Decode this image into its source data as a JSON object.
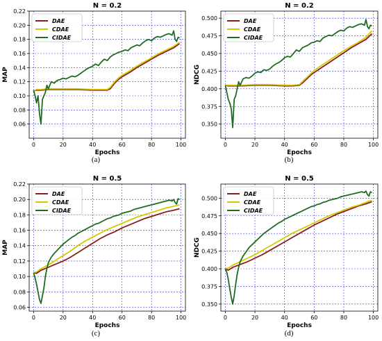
{
  "chart_data": [
    {
      "type": "line",
      "title": "N = 0.2",
      "xlabel": "Epochs",
      "ylabel": "MAP",
      "caption": "(a)",
      "xlim": [
        -3,
        103
      ],
      "ylim": [
        0.04,
        0.22
      ],
      "xticks": [
        "0",
        "20",
        "40",
        "60",
        "80",
        "100"
      ],
      "yticks": [
        "0.06",
        "0.08",
        "0.10",
        "0.12",
        "0.14",
        "0.16",
        "0.18",
        "0.20",
        "0.22"
      ],
      "grid": true,
      "legend_position": "top-left",
      "series": [
        {
          "name": "DAE",
          "color": "#8b1a1a",
          "x": [
            0,
            2,
            5,
            10,
            20,
            30,
            40,
            45,
            50,
            52,
            55,
            58,
            60,
            65,
            70,
            75,
            80,
            85,
            90,
            95,
            99
          ],
          "y": [
            0.107,
            0.108,
            0.108,
            0.109,
            0.109,
            0.109,
            0.108,
            0.108,
            0.108,
            0.11,
            0.118,
            0.124,
            0.127,
            0.133,
            0.14,
            0.146,
            0.152,
            0.158,
            0.163,
            0.168,
            0.174
          ]
        },
        {
          "name": "CDAE",
          "color": "#d4c800",
          "x": [
            0,
            2,
            5,
            10,
            20,
            30,
            40,
            45,
            50,
            52,
            55,
            58,
            60,
            65,
            70,
            75,
            80,
            85,
            90,
            95,
            99
          ],
          "y": [
            0.107,
            0.109,
            0.109,
            0.11,
            0.11,
            0.11,
            0.109,
            0.109,
            0.109,
            0.112,
            0.12,
            0.126,
            0.129,
            0.135,
            0.142,
            0.148,
            0.154,
            0.16,
            0.165,
            0.17,
            0.176
          ]
        },
        {
          "name": "CIDAE",
          "color": "#1f6b1f",
          "x": [
            0,
            1,
            2,
            3,
            4,
            5,
            6,
            7,
            8,
            9,
            10,
            12,
            14,
            16,
            18,
            20,
            22,
            24,
            26,
            28,
            30,
            32,
            34,
            36,
            38,
            40,
            42,
            44,
            46,
            48,
            50,
            52,
            54,
            56,
            58,
            60,
            62,
            64,
            66,
            68,
            70,
            72,
            74,
            76,
            78,
            80,
            82,
            84,
            86,
            88,
            90,
            92,
            94,
            95,
            96,
            97,
            98,
            99
          ],
          "y": [
            0.108,
            0.1,
            0.09,
            0.1,
            0.075,
            0.06,
            0.095,
            0.1,
            0.105,
            0.115,
            0.11,
            0.12,
            0.118,
            0.122,
            0.123,
            0.125,
            0.124,
            0.126,
            0.128,
            0.127,
            0.129,
            0.132,
            0.135,
            0.138,
            0.14,
            0.142,
            0.145,
            0.143,
            0.148,
            0.152,
            0.15,
            0.155,
            0.158,
            0.16,
            0.162,
            0.163,
            0.165,
            0.164,
            0.168,
            0.17,
            0.172,
            0.171,
            0.175,
            0.178,
            0.18,
            0.178,
            0.182,
            0.184,
            0.183,
            0.185,
            0.187,
            0.188,
            0.186,
            0.192,
            0.18,
            0.177,
            0.183,
            0.182
          ]
        }
      ]
    },
    {
      "type": "line",
      "title": "N = 0.2",
      "xlabel": "Epochs",
      "ylabel": "NDCG",
      "caption": "(b)",
      "xlim": [
        -3,
        103
      ],
      "ylim": [
        0.33,
        0.51
      ],
      "xticks": [
        "0",
        "20",
        "40",
        "60",
        "80",
        "100"
      ],
      "yticks": [
        "0.350",
        "0.375",
        "0.400",
        "0.425",
        "0.450",
        "0.475",
        "0.500"
      ],
      "grid": true,
      "legend_position": "top-left",
      "series": [
        {
          "name": "DAE",
          "color": "#8b1a1a",
          "x": [
            0,
            2,
            5,
            10,
            20,
            30,
            40,
            45,
            50,
            52,
            55,
            58,
            60,
            65,
            70,
            75,
            80,
            85,
            90,
            95,
            99
          ],
          "y": [
            0.405,
            0.404,
            0.404,
            0.404,
            0.405,
            0.405,
            0.404,
            0.404,
            0.405,
            0.408,
            0.414,
            0.42,
            0.423,
            0.43,
            0.437,
            0.444,
            0.451,
            0.458,
            0.464,
            0.47,
            0.478
          ]
        },
        {
          "name": "CDAE",
          "color": "#d4c800",
          "x": [
            0,
            2,
            5,
            10,
            20,
            30,
            40,
            45,
            50,
            52,
            55,
            58,
            60,
            65,
            70,
            75,
            80,
            85,
            90,
            95,
            99
          ],
          "y": [
            0.405,
            0.405,
            0.405,
            0.405,
            0.406,
            0.406,
            0.405,
            0.405,
            0.406,
            0.41,
            0.416,
            0.422,
            0.426,
            0.433,
            0.44,
            0.447,
            0.454,
            0.46,
            0.466,
            0.473,
            0.482
          ]
        },
        {
          "name": "CIDAE",
          "color": "#1f6b1f",
          "x": [
            0,
            1,
            2,
            3,
            4,
            5,
            6,
            7,
            8,
            9,
            10,
            12,
            14,
            16,
            18,
            20,
            22,
            24,
            26,
            28,
            30,
            32,
            34,
            36,
            38,
            40,
            42,
            44,
            46,
            48,
            50,
            52,
            54,
            56,
            58,
            60,
            62,
            64,
            66,
            68,
            70,
            72,
            74,
            76,
            78,
            80,
            82,
            84,
            86,
            88,
            90,
            92,
            94,
            95,
            96,
            97,
            98,
            99
          ],
          "y": [
            0.405,
            0.395,
            0.385,
            0.38,
            0.372,
            0.345,
            0.385,
            0.39,
            0.4,
            0.41,
            0.405,
            0.414,
            0.416,
            0.415,
            0.418,
            0.422,
            0.424,
            0.423,
            0.427,
            0.426,
            0.428,
            0.432,
            0.435,
            0.437,
            0.44,
            0.444,
            0.446,
            0.445,
            0.45,
            0.455,
            0.453,
            0.458,
            0.46,
            0.462,
            0.465,
            0.466,
            0.468,
            0.467,
            0.472,
            0.474,
            0.476,
            0.475,
            0.478,
            0.481,
            0.483,
            0.482,
            0.486,
            0.488,
            0.487,
            0.489,
            0.491,
            0.492,
            0.49,
            0.498,
            0.488,
            0.485,
            0.49,
            0.489
          ]
        }
      ]
    },
    {
      "type": "line",
      "title": "N = 0.5",
      "xlabel": "Epochs",
      "ylabel": "MAP",
      "caption": "(c)",
      "xlim": [
        -3,
        103
      ],
      "ylim": [
        0.055,
        0.22
      ],
      "xticks": [
        "0",
        "20",
        "40",
        "60",
        "80",
        "100"
      ],
      "yticks": [
        "0.06",
        "0.08",
        "0.10",
        "0.12",
        "0.14",
        "0.16",
        "0.18",
        "0.20",
        "0.22"
      ],
      "grid": true,
      "legend_position": "top-left",
      "series": [
        {
          "name": "DAE",
          "color": "#8b1a1a",
          "x": [
            0,
            2,
            5,
            10,
            15,
            20,
            25,
            30,
            35,
            40,
            45,
            50,
            55,
            60,
            65,
            70,
            75,
            80,
            85,
            90,
            95,
            99
          ],
          "y": [
            0.105,
            0.104,
            0.108,
            0.112,
            0.116,
            0.12,
            0.125,
            0.131,
            0.137,
            0.143,
            0.149,
            0.154,
            0.158,
            0.163,
            0.167,
            0.171,
            0.175,
            0.178,
            0.181,
            0.184,
            0.186,
            0.188
          ]
        },
        {
          "name": "CDAE",
          "color": "#d4c800",
          "x": [
            0,
            2,
            5,
            10,
            15,
            20,
            25,
            30,
            35,
            40,
            45,
            50,
            55,
            60,
            65,
            70,
            75,
            80,
            85,
            90,
            95,
            99
          ],
          "y": [
            0.105,
            0.106,
            0.11,
            0.115,
            0.121,
            0.127,
            0.133,
            0.14,
            0.146,
            0.151,
            0.156,
            0.161,
            0.165,
            0.169,
            0.173,
            0.177,
            0.18,
            0.183,
            0.186,
            0.189,
            0.191,
            0.193
          ]
        },
        {
          "name": "CIDAE",
          "color": "#1f6b1f",
          "x": [
            0,
            1,
            2,
            3,
            4,
            5,
            6,
            7,
            8,
            9,
            10,
            12,
            14,
            16,
            18,
            20,
            22,
            24,
            26,
            28,
            30,
            32,
            34,
            36,
            38,
            40,
            42,
            44,
            46,
            48,
            50,
            52,
            54,
            56,
            58,
            60,
            62,
            64,
            66,
            68,
            70,
            72,
            74,
            76,
            78,
            80,
            82,
            84,
            86,
            88,
            90,
            92,
            94,
            95,
            96,
            97,
            98,
            99
          ],
          "y": [
            0.105,
            0.098,
            0.09,
            0.08,
            0.07,
            0.065,
            0.075,
            0.085,
            0.1,
            0.11,
            0.118,
            0.125,
            0.13,
            0.134,
            0.138,
            0.142,
            0.145,
            0.148,
            0.151,
            0.153,
            0.156,
            0.158,
            0.16,
            0.162,
            0.164,
            0.166,
            0.168,
            0.169,
            0.171,
            0.173,
            0.175,
            0.176,
            0.178,
            0.179,
            0.18,
            0.182,
            0.183,
            0.184,
            0.185,
            0.187,
            0.188,
            0.189,
            0.19,
            0.191,
            0.192,
            0.193,
            0.194,
            0.195,
            0.196,
            0.197,
            0.198,
            0.199,
            0.198,
            0.2,
            0.196,
            0.194,
            0.201,
            0.2
          ]
        }
      ]
    },
    {
      "type": "line",
      "title": "N = 0.5",
      "xlabel": "Epochs",
      "ylabel": "NDCG",
      "caption": "(d)",
      "xlim": [
        -3,
        103
      ],
      "ylim": [
        0.34,
        0.52
      ],
      "xticks": [
        "0",
        "20",
        "40",
        "60",
        "80",
        "100"
      ],
      "yticks": [
        "0.350",
        "0.375",
        "0.400",
        "0.425",
        "0.450",
        "0.475",
        "0.500"
      ],
      "grid": true,
      "legend_position": "top-left",
      "series": [
        {
          "name": "DAE",
          "color": "#8b1a1a",
          "x": [
            0,
            2,
            5,
            10,
            15,
            20,
            25,
            30,
            35,
            40,
            45,
            50,
            55,
            60,
            65,
            70,
            75,
            80,
            85,
            90,
            95,
            99
          ],
          "y": [
            0.4,
            0.398,
            0.402,
            0.406,
            0.41,
            0.415,
            0.42,
            0.426,
            0.432,
            0.438,
            0.444,
            0.45,
            0.456,
            0.462,
            0.467,
            0.472,
            0.477,
            0.481,
            0.485,
            0.489,
            0.492,
            0.495
          ]
        },
        {
          "name": "CDAE",
          "color": "#d4c800",
          "x": [
            0,
            2,
            5,
            10,
            15,
            20,
            25,
            30,
            35,
            40,
            45,
            50,
            55,
            60,
            65,
            70,
            75,
            80,
            85,
            90,
            95,
            99
          ],
          "y": [
            0.4,
            0.401,
            0.405,
            0.41,
            0.415,
            0.42,
            0.426,
            0.432,
            0.438,
            0.444,
            0.45,
            0.455,
            0.46,
            0.465,
            0.47,
            0.475,
            0.479,
            0.483,
            0.487,
            0.49,
            0.494,
            0.497
          ]
        },
        {
          "name": "CIDAE",
          "color": "#1f6b1f",
          "x": [
            0,
            1,
            2,
            3,
            4,
            5,
            6,
            7,
            8,
            9,
            10,
            12,
            14,
            16,
            18,
            20,
            22,
            24,
            26,
            28,
            30,
            32,
            34,
            36,
            38,
            40,
            42,
            44,
            46,
            48,
            50,
            52,
            54,
            56,
            58,
            60,
            62,
            64,
            66,
            68,
            70,
            72,
            74,
            76,
            78,
            80,
            82,
            84,
            86,
            88,
            90,
            92,
            94,
            95,
            96,
            97,
            98,
            99
          ],
          "y": [
            0.4,
            0.395,
            0.385,
            0.372,
            0.36,
            0.35,
            0.362,
            0.378,
            0.392,
            0.402,
            0.41,
            0.418,
            0.424,
            0.43,
            0.434,
            0.438,
            0.442,
            0.446,
            0.45,
            0.453,
            0.456,
            0.459,
            0.462,
            0.465,
            0.467,
            0.47,
            0.472,
            0.474,
            0.476,
            0.478,
            0.48,
            0.482,
            0.484,
            0.486,
            0.488,
            0.489,
            0.491,
            0.492,
            0.494,
            0.495,
            0.497,
            0.498,
            0.499,
            0.5,
            0.502,
            0.503,
            0.504,
            0.505,
            0.506,
            0.507,
            0.508,
            0.509,
            0.508,
            0.51,
            0.505,
            0.503,
            0.509,
            0.508
          ]
        }
      ]
    }
  ]
}
